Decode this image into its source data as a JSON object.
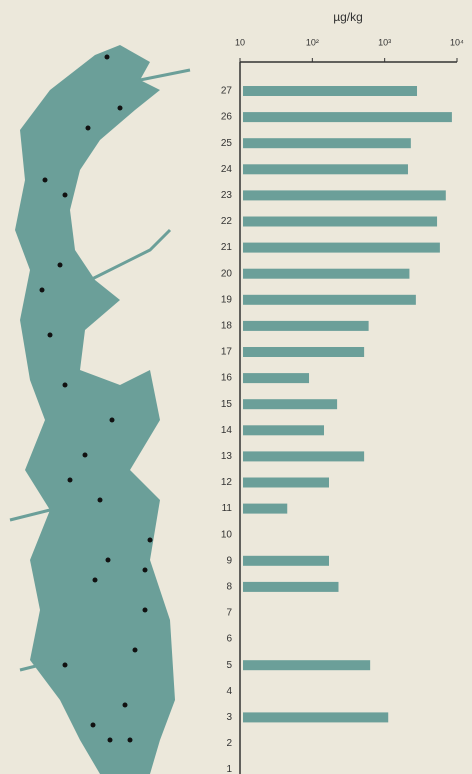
{
  "chart_data": {
    "type": "bar",
    "orientation": "horizontal",
    "x_label": "µg/kg",
    "categories": [
      "27",
      "26",
      "25",
      "24",
      "23",
      "22",
      "21",
      "20",
      "19",
      "18",
      "17",
      "16",
      "15",
      "14",
      "13",
      "12",
      "11",
      "10",
      "9",
      "8",
      "7",
      "6",
      "5",
      "4",
      "3",
      "2",
      "1"
    ],
    "values": [
      2800,
      8500,
      2300,
      2100,
      7000,
      5300,
      5800,
      2200,
      2700,
      600,
      520,
      90,
      220,
      145,
      520,
      170,
      45,
      null,
      170,
      230,
      null,
      null,
      630,
      null,
      1120,
      null,
      null
    ],
    "color": "#6b9f99",
    "xlim": [
      10,
      10000
    ],
    "log_x": true,
    "xticks": [
      10,
      {
        "value": 100,
        "label": "10²"
      },
      {
        "value": 1000,
        "label": "10³"
      },
      {
        "value": 10000,
        "label": "10⁴"
      }
    ]
  }
}
